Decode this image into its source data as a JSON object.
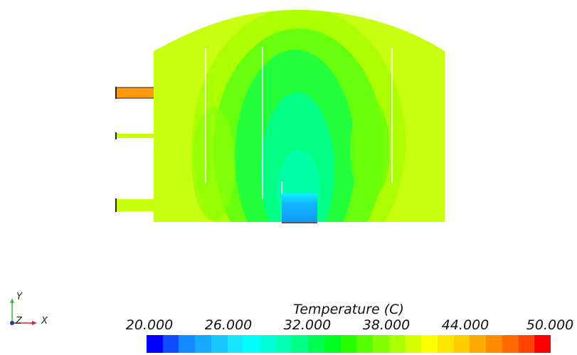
{
  "legend": {
    "title": "Temperature (C)",
    "ticks": [
      "20.000",
      "26.000",
      "32.000",
      "38.000",
      "44.000",
      "50.000"
    ],
    "min": 20,
    "max": 50
  },
  "axes": {
    "x": "X",
    "y": "Y",
    "z": "Z"
  },
  "colors": {
    "background": "#ffffff",
    "colormap": [
      "#0000ff",
      "#0d4cff",
      "#1488ff",
      "#16a8ff",
      "#18c8ff",
      "#18e6ff",
      "#00ffff",
      "#00ffd9",
      "#00ffb0",
      "#00ff85",
      "#00ff55",
      "#00ff22",
      "#2aff00",
      "#55ff00",
      "#80ff00",
      "#aaff00",
      "#d4ff00",
      "#ffff00",
      "#ffe600",
      "#ffcc00",
      "#ffaa00",
      "#ff8c00",
      "#ff6a00",
      "#ff4400",
      "#ff0000"
    ]
  }
}
